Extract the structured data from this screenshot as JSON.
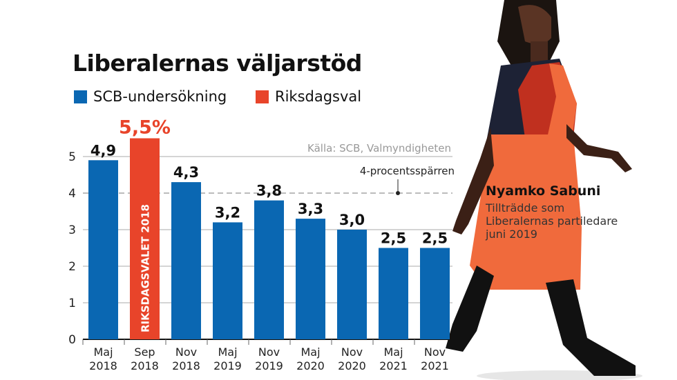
{
  "colors": {
    "scb": "#0a67b2",
    "val": "#e8442a",
    "grid": "#999999"
  },
  "person": {
    "name": "Nyamko Sabuni",
    "desc": "Tillträdde som Liberalernas partiledare juni 2019"
  },
  "chart_data": {
    "type": "bar",
    "title": "Liberalernas väljarstöd",
    "legend": [
      {
        "name": "SCB-undersökning",
        "color": "#0a67b2"
      },
      {
        "name": "Riksdagsval",
        "color": "#e8442a"
      }
    ],
    "source": "Källa: SCB, Valmyndigheten",
    "threshold": {
      "value": 4,
      "label": "4-procentsspärren"
    },
    "categories": [
      "Maj\n2018",
      "Sep\n2018",
      "Nov\n2018",
      "Maj\n2019",
      "Nov\n2019",
      "Maj\n2020",
      "Nov\n2020",
      "Maj\n2021",
      "Nov\n2021"
    ],
    "values": [
      4.9,
      5.5,
      4.3,
      3.2,
      3.8,
      3.3,
      3.0,
      2.5,
      2.5
    ],
    "labels": [
      "4,9",
      "5,5%",
      "4,3",
      "3,2",
      "3,8",
      "3,3",
      "3,0",
      "2,5",
      "2,5"
    ],
    "series_of_bar": [
      "scb",
      "val",
      "scb",
      "scb",
      "scb",
      "scb",
      "scb",
      "scb",
      "scb"
    ],
    "bar_annotation": "RIKSDAGSVALET 2018",
    "yticks": [
      0,
      1,
      2,
      3,
      4,
      5
    ],
    "ylim": [
      0,
      5.5
    ],
    "grid": true
  }
}
